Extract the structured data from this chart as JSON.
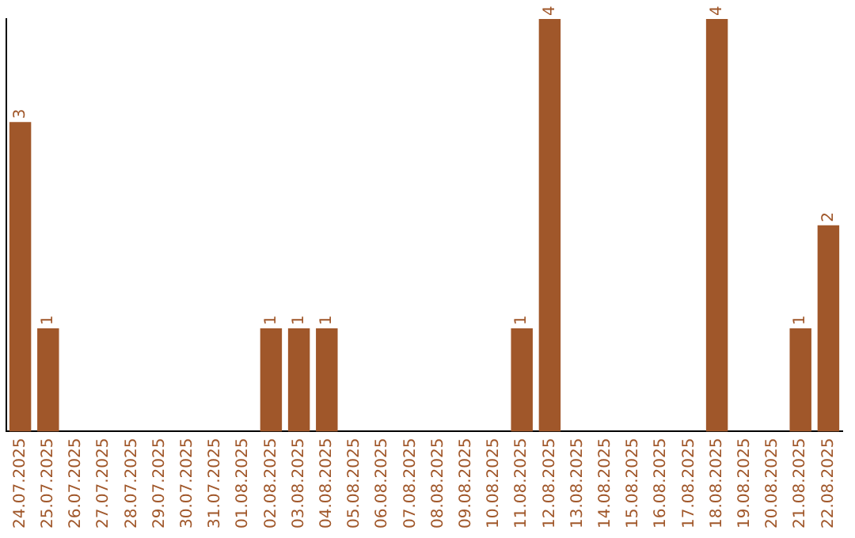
{
  "chart_data": {
    "type": "bar",
    "categories": [
      "24.07.2025",
      "25.07.2025",
      "26.07.2025",
      "27.07.2025",
      "28.07.2025",
      "29.07.2025",
      "30.07.2025",
      "31.07.2025",
      "01.08.2025",
      "02.08.2025",
      "03.08.2025",
      "04.08.2025",
      "05.08.2025",
      "06.08.2025",
      "07.08.2025",
      "08.08.2025",
      "09.08.2025",
      "10.08.2025",
      "11.08.2025",
      "12.08.2025",
      "13.08.2025",
      "14.08.2025",
      "15.08.2025",
      "16.08.2025",
      "17.08.2025",
      "18.08.2025",
      "19.08.2025",
      "20.08.2025",
      "21.08.2025",
      "22.08.2025"
    ],
    "values": [
      3,
      1,
      0,
      0,
      0,
      0,
      0,
      0,
      0,
      1,
      1,
      1,
      0,
      0,
      0,
      0,
      0,
      0,
      1,
      4,
      0,
      0,
      0,
      0,
      0,
      4,
      0,
      0,
      1,
      2
    ],
    "value_labels": [
      "3",
      "1",
      null,
      null,
      null,
      null,
      null,
      null,
      null,
      "1",
      "1",
      "1",
      null,
      null,
      null,
      null,
      null,
      null,
      "1",
      "4",
      null,
      null,
      null,
      null,
      null,
      "4",
      null,
      null,
      "1",
      "2"
    ],
    "color": "#a0572a",
    "grid": false,
    "legend": false
  }
}
